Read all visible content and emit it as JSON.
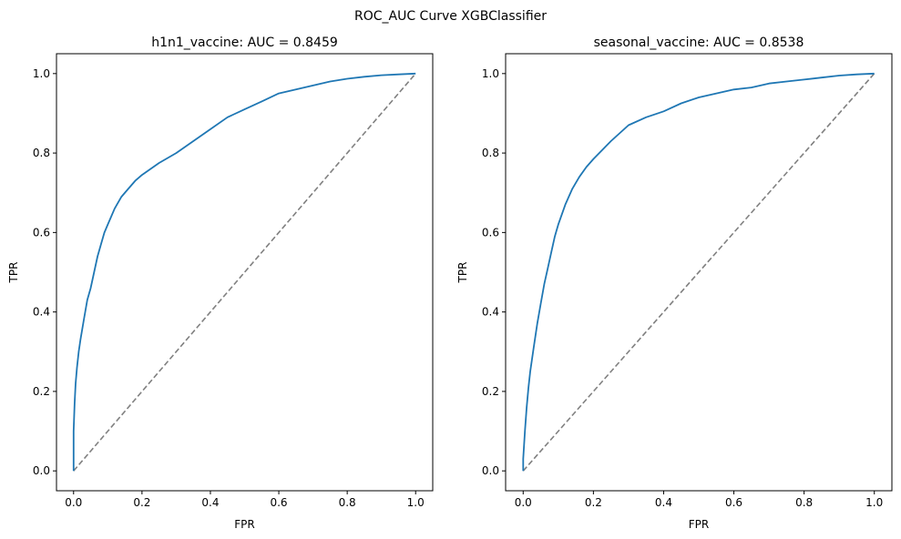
{
  "figure": {
    "suptitle": "ROC_AUC Curve XGBClassifier"
  },
  "colors": {
    "roc": "#1f77b4",
    "diagonal": "#808080",
    "axes": "#000000"
  },
  "chart_data": [
    {
      "type": "line",
      "title": "h1n1_vaccine: AUC = 0.8459",
      "xlabel": "FPR",
      "ylabel": "TPR",
      "xlim": [
        -0.05,
        1.05
      ],
      "ylim": [
        -0.05,
        1.05
      ],
      "xticks": [
        "0.0",
        "0.2",
        "0.4",
        "0.6",
        "0.8",
        "1.0"
      ],
      "yticks": [
        "0.0",
        "0.2",
        "0.4",
        "0.6",
        "0.8",
        "1.0"
      ],
      "series": [
        {
          "style": "solid",
          "x": [
            0.0,
            0.0,
            0.003,
            0.006,
            0.01,
            0.015,
            0.02,
            0.03,
            0.04,
            0.05,
            0.06,
            0.07,
            0.08,
            0.09,
            0.1,
            0.12,
            0.14,
            0.16,
            0.18,
            0.2,
            0.25,
            0.3,
            0.35,
            0.4,
            0.45,
            0.5,
            0.55,
            0.6,
            0.65,
            0.7,
            0.75,
            0.8,
            0.85,
            0.9,
            0.95,
            1.0
          ],
          "y": [
            0.0,
            0.1,
            0.17,
            0.22,
            0.26,
            0.3,
            0.33,
            0.38,
            0.43,
            0.46,
            0.5,
            0.54,
            0.57,
            0.6,
            0.62,
            0.66,
            0.69,
            0.71,
            0.73,
            0.745,
            0.775,
            0.8,
            0.83,
            0.86,
            0.89,
            0.91,
            0.93,
            0.95,
            0.96,
            0.97,
            0.98,
            0.987,
            0.992,
            0.996,
            0.998,
            1.0
          ]
        },
        {
          "style": "dashed",
          "x": [
            0,
            1
          ],
          "y": [
            0,
            1
          ]
        }
      ]
    },
    {
      "type": "line",
      "title": "seasonal_vaccine: AUC = 0.8538",
      "xlabel": "FPR",
      "ylabel": "TPR",
      "xlim": [
        -0.05,
        1.05
      ],
      "ylim": [
        -0.05,
        1.05
      ],
      "xticks": [
        "0.0",
        "0.2",
        "0.4",
        "0.6",
        "0.8",
        "1.0"
      ],
      "yticks": [
        "0.0",
        "0.2",
        "0.4",
        "0.6",
        "0.8",
        "1.0"
      ],
      "series": [
        {
          "style": "solid",
          "x": [
            0.0,
            0.0,
            0.005,
            0.01,
            0.015,
            0.02,
            0.03,
            0.04,
            0.05,
            0.06,
            0.07,
            0.08,
            0.09,
            0.1,
            0.12,
            0.14,
            0.16,
            0.18,
            0.2,
            0.25,
            0.3,
            0.35,
            0.4,
            0.45,
            0.5,
            0.55,
            0.6,
            0.65,
            0.7,
            0.75,
            0.8,
            0.85,
            0.9,
            0.95,
            1.0
          ],
          "y": [
            0.0,
            0.03,
            0.1,
            0.16,
            0.21,
            0.25,
            0.31,
            0.37,
            0.42,
            0.47,
            0.51,
            0.55,
            0.59,
            0.62,
            0.67,
            0.71,
            0.74,
            0.765,
            0.785,
            0.83,
            0.87,
            0.89,
            0.905,
            0.925,
            0.94,
            0.95,
            0.96,
            0.965,
            0.975,
            0.98,
            0.985,
            0.99,
            0.995,
            0.998,
            1.0
          ]
        },
        {
          "style": "dashed",
          "x": [
            0,
            1
          ],
          "y": [
            0,
            1
          ]
        }
      ]
    }
  ]
}
